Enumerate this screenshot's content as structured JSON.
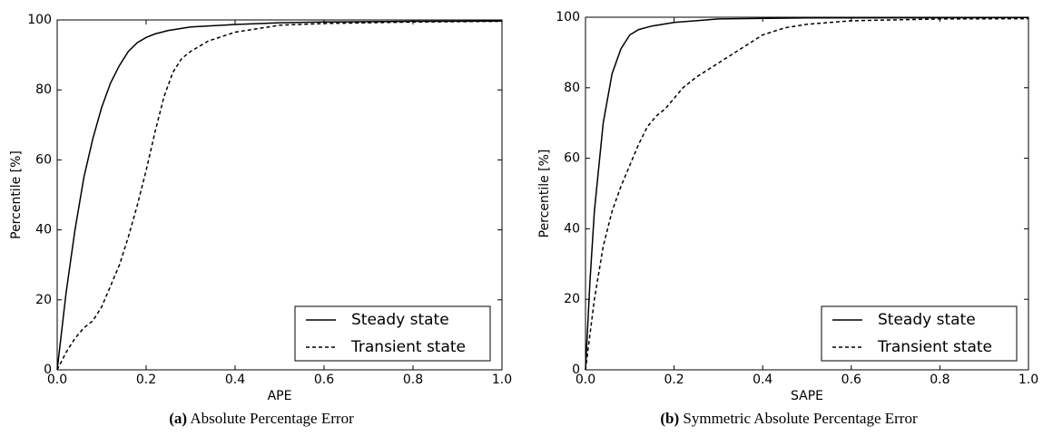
{
  "chart_data": [
    {
      "type": "line",
      "xlabel": "APE",
      "ylabel": "Percentile [%]",
      "caption_label": "(a)",
      "caption": "Absolute Percentage Error",
      "xlim": [
        0,
        1
      ],
      "ylim": [
        0,
        100
      ],
      "xticks": [
        {
          "value": 0,
          "label": "0.0"
        },
        0.2,
        0.4,
        0.6,
        0.8,
        {
          "value": 1,
          "label": "1.0"
        }
      ],
      "yticks": [
        0,
        20,
        40,
        60,
        80,
        100
      ],
      "legend": "lower right",
      "series": [
        {
          "name": "Steady state",
          "color": "#000000",
          "style": "solid",
          "x": [
            0,
            0.02,
            0.04,
            0.06,
            0.08,
            0.1,
            0.12,
            0.14,
            0.16,
            0.18,
            0.2,
            0.22,
            0.25,
            0.3,
            0.4,
            0.5,
            0.6,
            0.8,
            1.0
          ],
          "values": [
            0,
            22,
            40,
            55,
            66,
            75,
            82,
            87,
            91,
            93.5,
            95,
            96,
            97,
            98,
            98.7,
            99.2,
            99.4,
            99.6,
            99.7
          ]
        },
        {
          "name": "Transient state",
          "color": "#000000",
          "style": "dashed",
          "x": [
            0,
            0.02,
            0.04,
            0.06,
            0.08,
            0.1,
            0.12,
            0.14,
            0.16,
            0.18,
            0.2,
            0.22,
            0.24,
            0.26,
            0.28,
            0.3,
            0.34,
            0.4,
            0.5,
            0.6,
            0.8,
            1.0
          ],
          "values": [
            0,
            5,
            9,
            12,
            14,
            18,
            24,
            30,
            38,
            47,
            57,
            68,
            78,
            85,
            89,
            91,
            94,
            96.5,
            98.5,
            99,
            99.4,
            99.6
          ]
        }
      ]
    },
    {
      "type": "line",
      "xlabel": "SAPE",
      "ylabel": "Percentile [%]",
      "caption_label": "(b)",
      "caption": "Symmetric Absolute Percentage Error",
      "xlim": [
        0,
        1
      ],
      "ylim": [
        0,
        100
      ],
      "xticks": [
        {
          "value": 0,
          "label": "0.0"
        },
        0.2,
        0.4,
        0.6,
        0.8,
        {
          "value": 1,
          "label": "1.0"
        }
      ],
      "yticks": [
        0,
        20,
        40,
        60,
        80,
        100
      ],
      "legend": "lower right",
      "series": [
        {
          "name": "Steady state",
          "color": "#000000",
          "style": "solid",
          "x": [
            0,
            0.01,
            0.02,
            0.04,
            0.06,
            0.08,
            0.1,
            0.12,
            0.15,
            0.2,
            0.3,
            0.5,
            1.0
          ],
          "values": [
            0,
            25,
            45,
            70,
            84,
            91,
            95,
            96.5,
            97.5,
            98.5,
            99.5,
            99.8,
            99.9
          ]
        },
        {
          "name": "Transient state",
          "color": "#000000",
          "style": "dashed",
          "x": [
            0,
            0.02,
            0.04,
            0.06,
            0.08,
            0.1,
            0.12,
            0.14,
            0.16,
            0.18,
            0.2,
            0.22,
            0.25,
            0.3,
            0.35,
            0.4,
            0.45,
            0.5,
            0.6,
            0.8,
            1.0
          ],
          "values": [
            0,
            20,
            35,
            45,
            52,
            58,
            64,
            69,
            72,
            74,
            77,
            80,
            83,
            87,
            91,
            95,
            97,
            98,
            99,
            99.5,
            99.6
          ]
        }
      ]
    }
  ]
}
